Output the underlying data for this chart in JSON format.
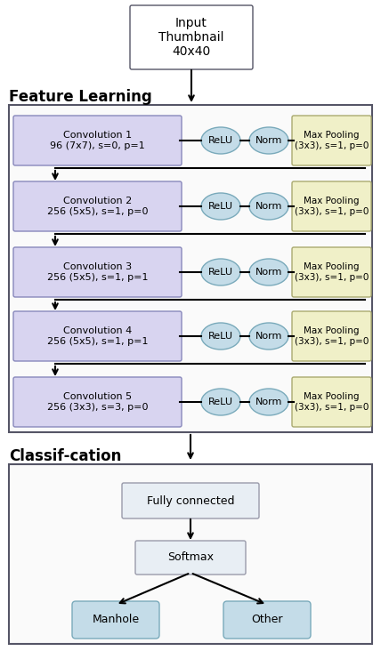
{
  "input_text": "Input\nThumbnail\n40x40",
  "feature_learning_label": "Feature Learning",
  "classification_label": "Classif­cation",
  "conv_layers": [
    {
      "conv": "Convolution 1\n96 (7x7), s=0, p=1",
      "pool": "Max Pooling\n(3x3), s=1, p=0"
    },
    {
      "conv": "Convolution 2\n256 (5x5), s=1, p=0",
      "pool": "Max Pooling\n(3x3), s=1, p=0"
    },
    {
      "conv": "Convolution 3\n256 (5x5), s=1, p=1",
      "pool": "Max Pooling\n(3x3), s=1, p=0"
    },
    {
      "conv": "Convolution 4\n256 (5x5), s=1, p=1",
      "pool": "Max Pooling\n(3x3), s=1, p=0"
    },
    {
      "conv": "Convolution 5\n256 (3x3), s=3, p=0",
      "pool": "Max Pooling\n(3x3), s=1, p=0"
    }
  ],
  "colors": {
    "conv_fill": "#d8d4f0",
    "conv_edge": "#8888bb",
    "pool_fill": "#f0f0c8",
    "pool_edge": "#aaaa70",
    "relu_norm_fill": "#c4dce8",
    "relu_norm_edge": "#7aaabb",
    "fc_fill": "#e8eef4",
    "fc_edge": "#999aaa",
    "out_fill": "#c4dce8",
    "out_edge": "#7aaabb",
    "arrow": "#000000",
    "feat_box_bg": "#fafafa",
    "class_box_bg": "#fafafa",
    "box_edge": "#555566",
    "bg": "#ffffff"
  },
  "layout": {
    "fig_w": 4.28,
    "fig_h": 7.32,
    "dpi": 100
  }
}
